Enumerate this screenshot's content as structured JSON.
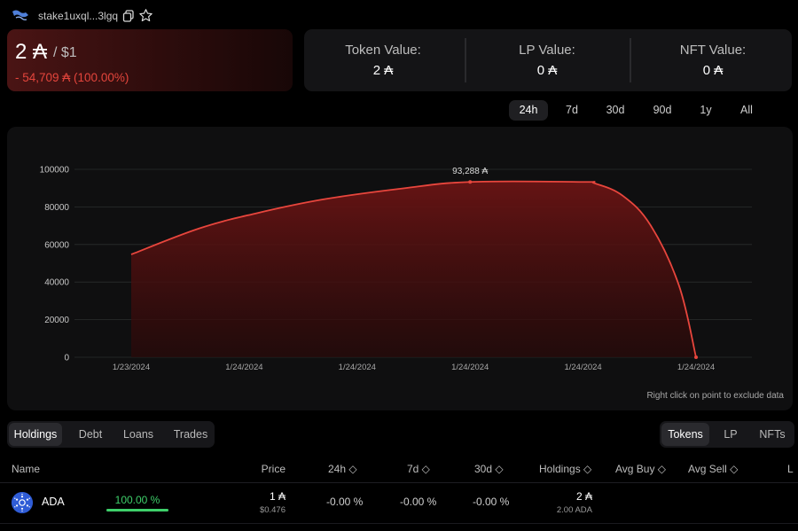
{
  "header": {
    "address": "stake1uxql...3lgq",
    "icons": [
      "wallet-logo-icon",
      "copy-icon",
      "star-icon"
    ]
  },
  "summary": {
    "value": "2 ₳",
    "usd": "/ $1",
    "change": "- 54,709 ₳ (100.00%)"
  },
  "values": {
    "token_label": "Token Value:",
    "token_value": "2 ₳",
    "lp_label": "LP Value:",
    "lp_value": "0 ₳",
    "nft_label": "NFT Value:",
    "nft_value": "0 ₳"
  },
  "ranges": [
    "24h",
    "7d",
    "30d",
    "90d",
    "1y",
    "All"
  ],
  "active_range": "24h",
  "chart_note": "Right click on point to exclude data",
  "chart_data": {
    "type": "area",
    "x": [
      "1/23/2024",
      "1/24/2024",
      "1/24/2024",
      "1/24/2024",
      "1/24/2024",
      "1/24/2024"
    ],
    "y_ticks": [
      "100000",
      "80000",
      "60000",
      "40000",
      "20000",
      "0"
    ],
    "ylim": [
      0,
      100000
    ],
    "points": [
      {
        "x": 0.0,
        "y": 54709
      },
      {
        "x": 0.6,
        "y": 68500
      },
      {
        "x": 1.1,
        "y": 76500
      },
      {
        "x": 1.7,
        "y": 84000
      },
      {
        "x": 2.4,
        "y": 89800
      },
      {
        "x": 3.0,
        "y": 93288
      },
      {
        "x": 4.0,
        "y": 93288
      },
      {
        "x": 4.1,
        "y": 92600
      },
      {
        "x": 4.35,
        "y": 86000
      },
      {
        "x": 4.6,
        "y": 70000
      },
      {
        "x": 4.85,
        "y": 38000
      },
      {
        "x": 5.0,
        "y": 2
      }
    ],
    "peak_label": "93,288 ₳",
    "colors": {
      "line": "#e8463d",
      "fill": "#5a1212",
      "grid": "#2a2f2d"
    }
  },
  "tabs_left": [
    "Holdings",
    "Debt",
    "Loans",
    "Trades"
  ],
  "tabs_right": [
    "Tokens",
    "LP",
    "NFTs"
  ],
  "table": {
    "headers": {
      "name": "Name",
      "price": "Price",
      "h24": "24h ◇",
      "d7": "7d ◇",
      "d30": "30d ◇",
      "holdings": "Holdings ◇",
      "avg_buy": "Avg Buy ◇",
      "avg_sell": "Avg Sell ◇",
      "l": "L"
    },
    "rows": [
      {
        "name": "ADA",
        "share": "100.00 %",
        "share_fraction": 1.0,
        "price": "1 ₳",
        "price_usd": "$0.476",
        "h24": "-0.00 %",
        "d7": "-0.00 %",
        "d30": "-0.00 %",
        "holdings": "2 ₳",
        "holdings_sub": "2.00 ADA"
      }
    ]
  }
}
